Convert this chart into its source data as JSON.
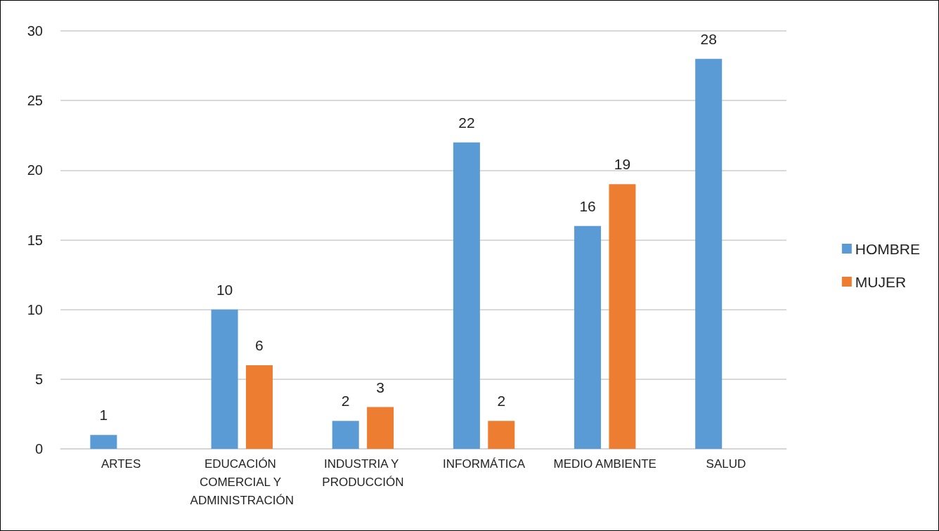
{
  "chart_data": {
    "type": "bar",
    "categories": [
      "ARTES",
      "EDUCACIÓN COMERCIAL Y ADMINISTRACIÓN",
      "INDUSTRIA Y PRODUCCIÓN",
      "INFORMÁTICA",
      "MEDIO AMBIENTE",
      "SALUD"
    ],
    "series": [
      {
        "name": "HOMBRE",
        "color": "#5b9bd5",
        "values": [
          1,
          10,
          2,
          22,
          16,
          28
        ]
      },
      {
        "name": "MUJER",
        "color": "#ed7d31",
        "values": [
          null,
          6,
          3,
          2,
          19,
          null
        ]
      }
    ],
    "ylim": [
      0,
      30
    ],
    "yticks": [
      0,
      5,
      10,
      15,
      20,
      25,
      30
    ],
    "grid": "y",
    "legend": "right",
    "data_labels": true
  }
}
